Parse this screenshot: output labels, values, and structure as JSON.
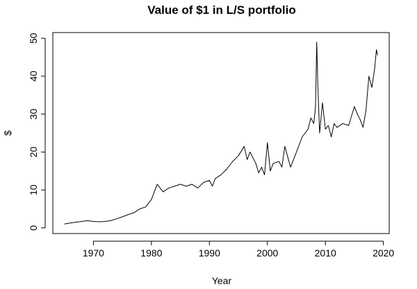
{
  "chart_data": {
    "type": "line",
    "title": "Value of $1 in L/S portfolio",
    "xlabel": "Year",
    "ylabel": "$",
    "xlim": [
      1963,
      2021
    ],
    "ylim": [
      -1.5,
      51.5
    ],
    "x_ticks": [
      1970,
      1980,
      1990,
      2000,
      2010,
      2020
    ],
    "y_ticks": [
      0,
      10,
      20,
      30,
      40,
      50
    ],
    "grid": false,
    "legend": "none",
    "line_color": "#000000",
    "series": [
      {
        "x": [
          1965.0,
          1966.0,
          1967.0,
          1968.0,
          1969.0,
          1970.0,
          1971.0,
          1972.0,
          1973.0,
          1974.0,
          1975.0,
          1976.0,
          1977.0,
          1978.0,
          1979.0,
          1980.0,
          1980.5,
          1981.0,
          1981.5,
          1982.0,
          1983.0,
          1984.0,
          1985.0,
          1986.0,
          1987.0,
          1988.0,
          1989.0,
          1990.0,
          1990.5,
          1991.0,
          1992.0,
          1993.0,
          1994.0,
          1995.0,
          1996.0,
          1996.5,
          1997.0,
          1998.0,
          1998.5,
          1999.0,
          1999.5,
          2000.0,
          2000.5,
          2001.0,
          2002.0,
          2002.5,
          2003.0,
          2004.0,
          2005.0,
          2006.0,
          2007.0,
          2007.5,
          2008.0,
          2008.3,
          2008.5,
          2008.7,
          2009.0,
          2009.5,
          2010.0,
          2010.5,
          2011.0,
          2011.5,
          2012.0,
          2013.0,
          2014.0,
          2015.0,
          2015.5,
          2016.0,
          2016.5,
          2017.0,
          2017.5,
          2018.0,
          2018.5,
          2018.8,
          2019.0
        ],
        "y": [
          1.0,
          1.3,
          1.5,
          1.7,
          1.9,
          1.7,
          1.6,
          1.7,
          1.9,
          2.4,
          2.9,
          3.5,
          4.0,
          5.0,
          5.5,
          7.5,
          9.5,
          11.5,
          10.5,
          9.5,
          10.5,
          11.0,
          11.5,
          11.0,
          11.5,
          10.5,
          12.0,
          12.5,
          11.0,
          13.0,
          14.0,
          15.5,
          17.5,
          19.0,
          21.5,
          18.0,
          20.0,
          17.0,
          14.5,
          16.0,
          14.0,
          22.5,
          15.0,
          17.0,
          17.5,
          16.0,
          21.5,
          16.0,
          20.0,
          24.0,
          26.0,
          29.0,
          27.5,
          32.0,
          49.0,
          37.0,
          25.0,
          33.0,
          26.0,
          27.0,
          24.0,
          27.5,
          26.5,
          27.5,
          27.0,
          32.0,
          30.0,
          28.5,
          26.5,
          31.0,
          40.0,
          37.0,
          42.0,
          47.0,
          45.5
        ]
      }
    ]
  }
}
